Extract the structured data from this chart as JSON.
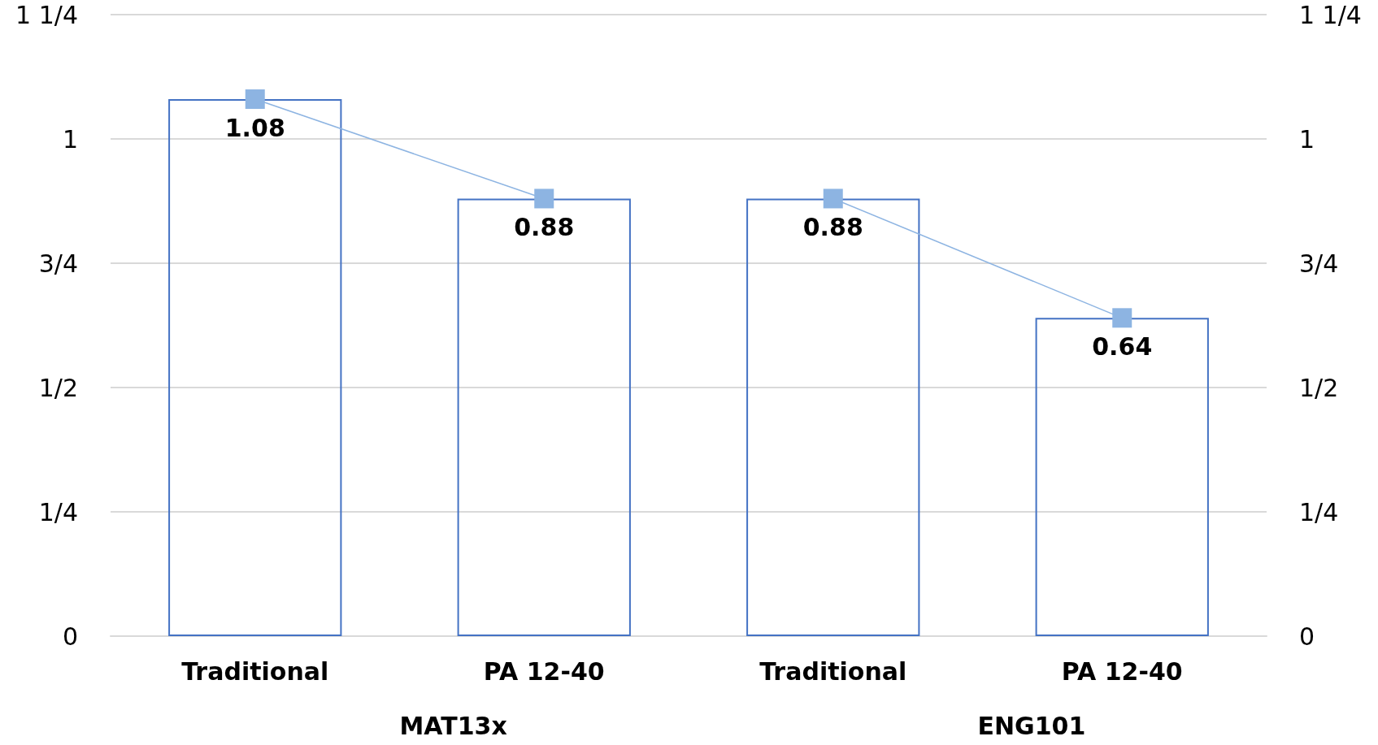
{
  "chart_data": {
    "type": "bar",
    "categories": [
      "Traditional",
      "PA 12-40",
      "Traditional",
      "PA 12-40"
    ],
    "series": [
      {
        "color": "#4472c4",
        "values": [
          1.08,
          0.88,
          0.88,
          0.64
        ],
        "value_labels": [
          "1.08",
          "0.88",
          "0.88",
          "0.64"
        ]
      },
      {
        "type": "line",
        "color": "#8db4e2",
        "values": [
          1.08,
          0.88,
          null,
          null
        ]
      },
      {
        "type": "line",
        "color": "#8db4e2",
        "values": [
          null,
          null,
          0.88,
          0.64
        ]
      }
    ],
    "marker": "square",
    "grid": "y",
    "ylim": [
      0,
      1.25
    ],
    "yticks": [
      0,
      {
        "value": 0.25,
        "label": "1/4"
      },
      {
        "value": 0.5,
        "label": "1/2"
      },
      {
        "value": 0.75,
        "label": "3/4"
      },
      1,
      {
        "value": 1.25,
        "label": "1 1/4"
      }
    ],
    "y2lim": [
      0,
      1.25
    ],
    "y2ticks": [
      0,
      {
        "value": 0.25,
        "label": "1/4"
      },
      {
        "value": 0.5,
        "label": "1/2"
      },
      {
        "value": 0.75,
        "label": "3/4"
      },
      1,
      {
        "value": 1.25,
        "label": "1 1/4"
      }
    ],
    "annotations": [
      "MAT13x",
      "ENG101"
    ]
  }
}
